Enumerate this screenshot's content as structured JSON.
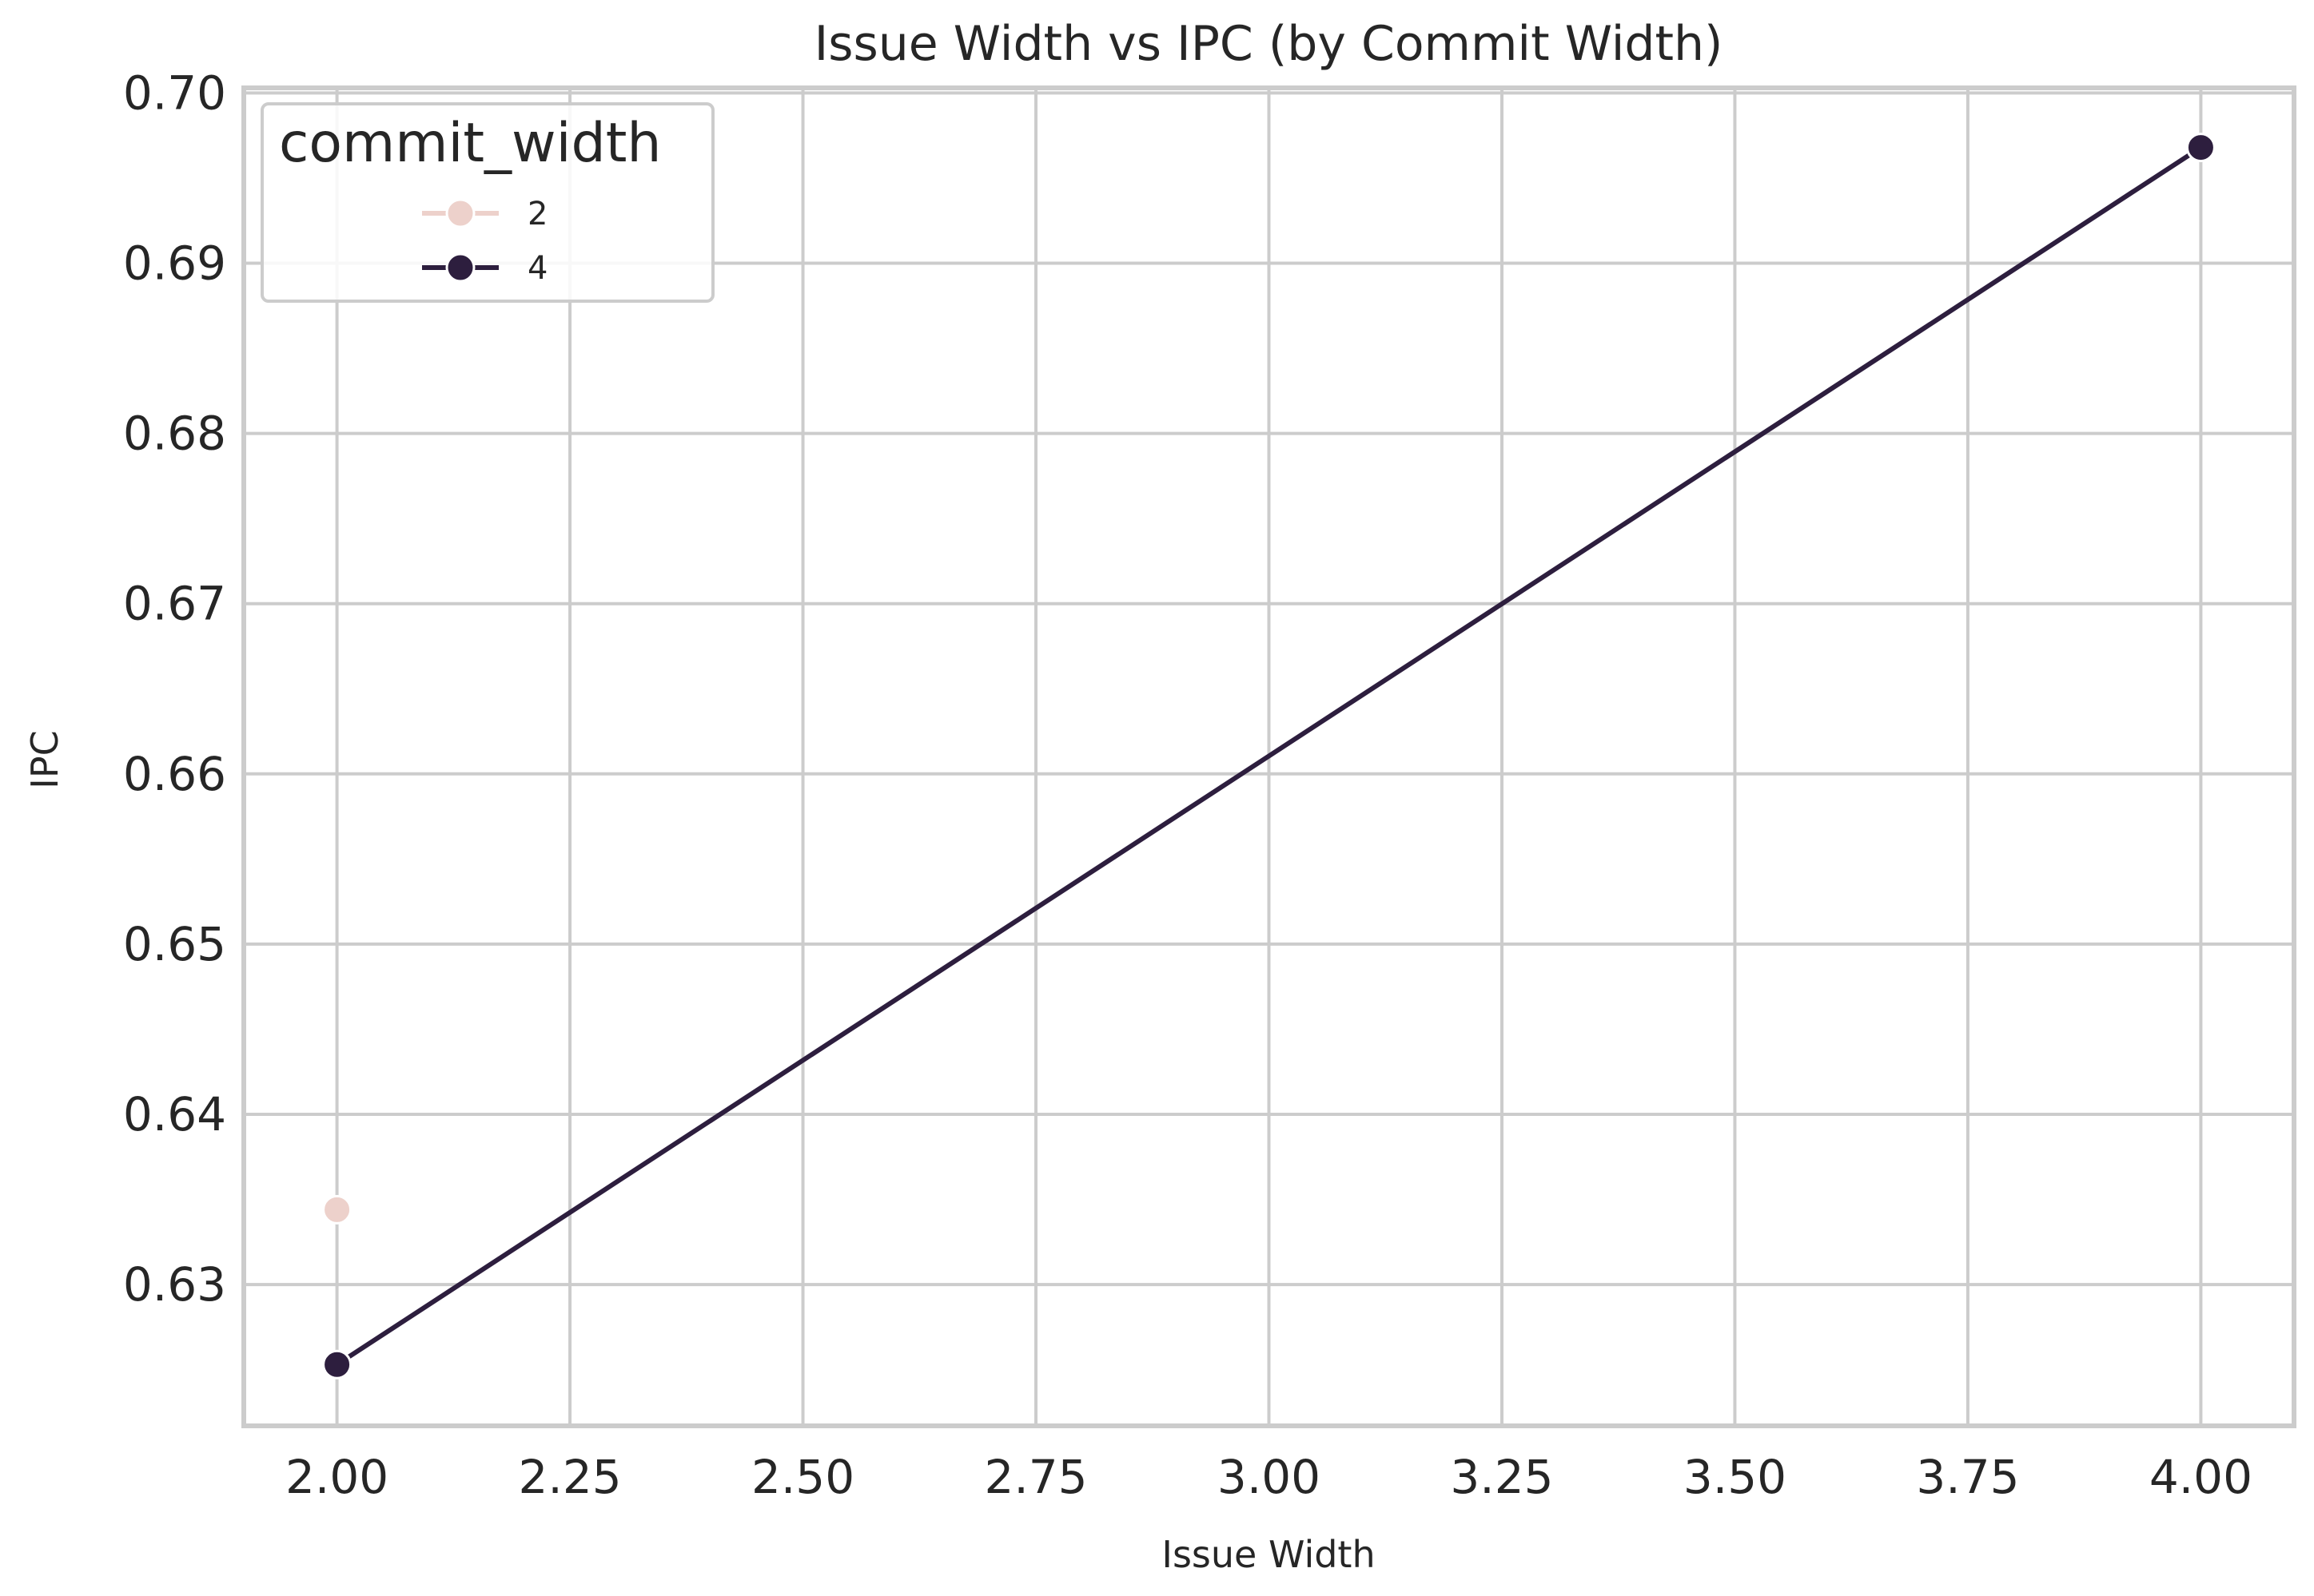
{
  "chart_data": {
    "type": "line",
    "title": "Issue Width vs IPC (by Commit Width)",
    "xlabel": "Issue Width",
    "ylabel": "IPC",
    "xlim": [
      1.9,
      4.1
    ],
    "ylim": [
      0.6217,
      0.7003
    ],
    "xticks": [
      2.0,
      2.25,
      2.5,
      2.75,
      3.0,
      3.25,
      3.5,
      3.75,
      4.0
    ],
    "xtick_labels": [
      "2.00",
      "2.25",
      "2.50",
      "2.75",
      "3.00",
      "3.25",
      "3.50",
      "3.75",
      "4.00"
    ],
    "yticks": [
      0.63,
      0.64,
      0.65,
      0.66,
      0.67,
      0.68,
      0.69,
      0.7
    ],
    "ytick_labels": [
      "0.63",
      "0.64",
      "0.65",
      "0.66",
      "0.67",
      "0.68",
      "0.69",
      "0.70"
    ],
    "grid": true,
    "legend": {
      "title": "commit_width",
      "placement": "top-left"
    },
    "series": [
      {
        "name": "2",
        "color": "#edd1cb",
        "x": [
          2.0
        ],
        "y": [
          0.6344
        ]
      },
      {
        "name": "4",
        "color": "#2d1e3e",
        "x": [
          2.0,
          4.0
        ],
        "y": [
          0.6253,
          0.6968
        ]
      }
    ]
  }
}
